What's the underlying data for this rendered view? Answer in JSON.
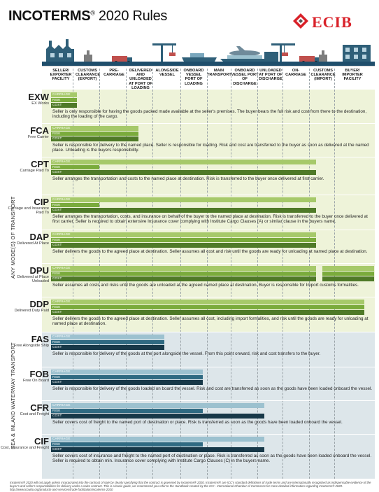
{
  "header": {
    "title_bold": "INCOTERMS",
    "title_reg": "®",
    "title_rest": " 2020 Rules",
    "logo_text": "ECIB"
  },
  "colors": {
    "green_dark": "#4f7a28",
    "green_mid": "#7aab3c",
    "green_light": "#a6c96a",
    "teal_dark": "#173848",
    "teal_mid": "#2f6a82",
    "teal_light": "#9cc1cf",
    "bg_any": "#eef3d9",
    "bg_sea": "#dde6ea",
    "logo_red": "#d92129"
  },
  "columns": [
    "SELLER/ EXPORTER FACILITY",
    "CUSTOMS CLEARANCE (EXPORT)",
    "PRE-CARRIAGE",
    "DELIVERED AND UNLOADED AT PORT OF LOADING",
    "ALONGSIDE VESSEL",
    "ONBOARD VESSEL PORT OF LOADING",
    "MAIN TRANSPORT",
    "ONBOARD VESSEL PORT OF DISCHARGE",
    "UNLOADED AT PORT OF DISCHARGE",
    "ON-CARRIAGE",
    "CUSTOMS CLEARANCE (IMPORT)",
    "BUYER/ IMPORTER FACILITY"
  ],
  "bar_labels": [
    "CARRIAGE",
    "RISK",
    "COST"
  ],
  "sections": {
    "any_mode": "ANY MODE(S) OF TRANSPORT",
    "sea": "SEA & INLAND WATERWAY TRANSPORT"
  },
  "terms": [
    {
      "code": "EXW",
      "name": "EX Works",
      "carriage": 0.08,
      "risk": 0.08,
      "cost": 0.08,
      "risk_gap": null,
      "desc": "Seller is only responsible for having the goods packed made available at the seller's premises. The buyer bears the full risk and cost from there to the destination, including the loading of the cargo."
    },
    {
      "code": "FCA",
      "name": "Free Carrier",
      "carriage": 0.27,
      "risk": 0.27,
      "cost": 0.27,
      "risk_gap": null,
      "desc": "Seller is responsible for delivery to the named place. Seller is responsible for loading. Risk and cost are transferred to the buyer as soon as delivered at the named place. Unloading is the buyers responsibility."
    },
    {
      "code": "CPT",
      "name": "Carriage Paid To",
      "carriage": 0.82,
      "risk": 0.15,
      "cost": 0.82,
      "risk_gap": null,
      "desc": "Seller arranges the transportation and costs to the named place at destination. Risk is transferred to the buyer once delivered at first carrier."
    },
    {
      "code": "CIP",
      "name": "Carriage and Insurance Paid To",
      "carriage": 0.82,
      "risk": 0.15,
      "cost": 0.82,
      "risk_gap": null,
      "desc": "Seller arranges the transportation, costs, and insurance on behalf of the buyer to the named place at destination. Risk is transferred to the buyer once delivered at first carrier. Seller is required to obtain extensive Insurance cover complying with Institute Cargo Clauses (A) or similar clause in the buyers name."
    },
    {
      "code": "DAP",
      "name": "Delivered At Place",
      "carriage": 0.82,
      "risk": 0.82,
      "cost": 0.82,
      "risk_gap": null,
      "desc": "Seller delivers the goods to the agreed place at destination. Seller assumes all cost and risk until the goods are ready for unloading at named place at destination."
    },
    {
      "code": "DPU",
      "name": "Delivered at Place Unloaded",
      "carriage": 0.82,
      "risk": 0.82,
      "cost": 0.82,
      "risk_gap": [
        0.84,
        1.0
      ],
      "desc": "Seller assumes all costs and risks until the goods are unloaded at the agreed named place at destination. Buyer is responsible for Import customs formalities."
    },
    {
      "code": "DDP",
      "name": "Delivered Duty Paid",
      "carriage": 0.97,
      "risk": 0.97,
      "cost": 0.97,
      "risk_gap": null,
      "desc": "Seller delivers the goods to the agreed place at destination. Seller assumes all cost, including import formalities, and risk until the goods are ready for unloading at named place at destination."
    },
    {
      "code": "FAS",
      "name": "Free Alongside Ship",
      "carriage": 0.35,
      "risk": 0.35,
      "cost": 0.35,
      "risk_gap": null,
      "desc": "Seller is responsible for delivery of the goods at the port alongside the vessel. From this point onward, risk and cost transfers to the buyer."
    },
    {
      "code": "FOB",
      "name": "Free On Board",
      "carriage": 0.47,
      "risk": 0.47,
      "cost": 0.47,
      "risk_gap": null,
      "desc": "Seller is responsible for delivery of the goods loaded on board the vessel. Risk and cost are transferred as soon as the goods have been loaded onboard the vessel."
    },
    {
      "code": "CFR",
      "name": "Cost and Freight",
      "carriage": 0.66,
      "risk": 0.47,
      "cost": 0.66,
      "risk_gap": null,
      "desc": "Seller covers cost of freight to the named port of destination or place. Risk is transferred as soon as the goods have been loaded onboard the vessel."
    },
    {
      "code": "CIF",
      "name": "Cost, Insurance and Freight",
      "carriage": 0.66,
      "risk": 0.47,
      "cost": 0.66,
      "risk_gap": null,
      "desc": "Seller covers cost of insurance and freight to the named port of destination or place. Risk is transferred as soon as the goods have been loaded onboard the vessel. Seller is required to obtain min. Insurance cover complying with Institute Cargo Clauses (C) in the buyers name."
    }
  ],
  "footer": "Incoterms® 2020 will not apply unless incorporated into the contract of sale by clearly specifying that the contract is governed by Incoterms® 2020. Incoterms® are ICC's standard definitions of trade terms and are internationally recognized as indispensable evidence of the buyer's and seller's responsibilities for delivery under a sales contract. This is a basic guide, we recommend you refer to the Handbook created by the ICC - International Chamber of Commerce for more detailed information regarding Incoterms® 2020. http://www.iccwbo.org/products-and-services/trade-facilitation/incoterms-2020"
}
